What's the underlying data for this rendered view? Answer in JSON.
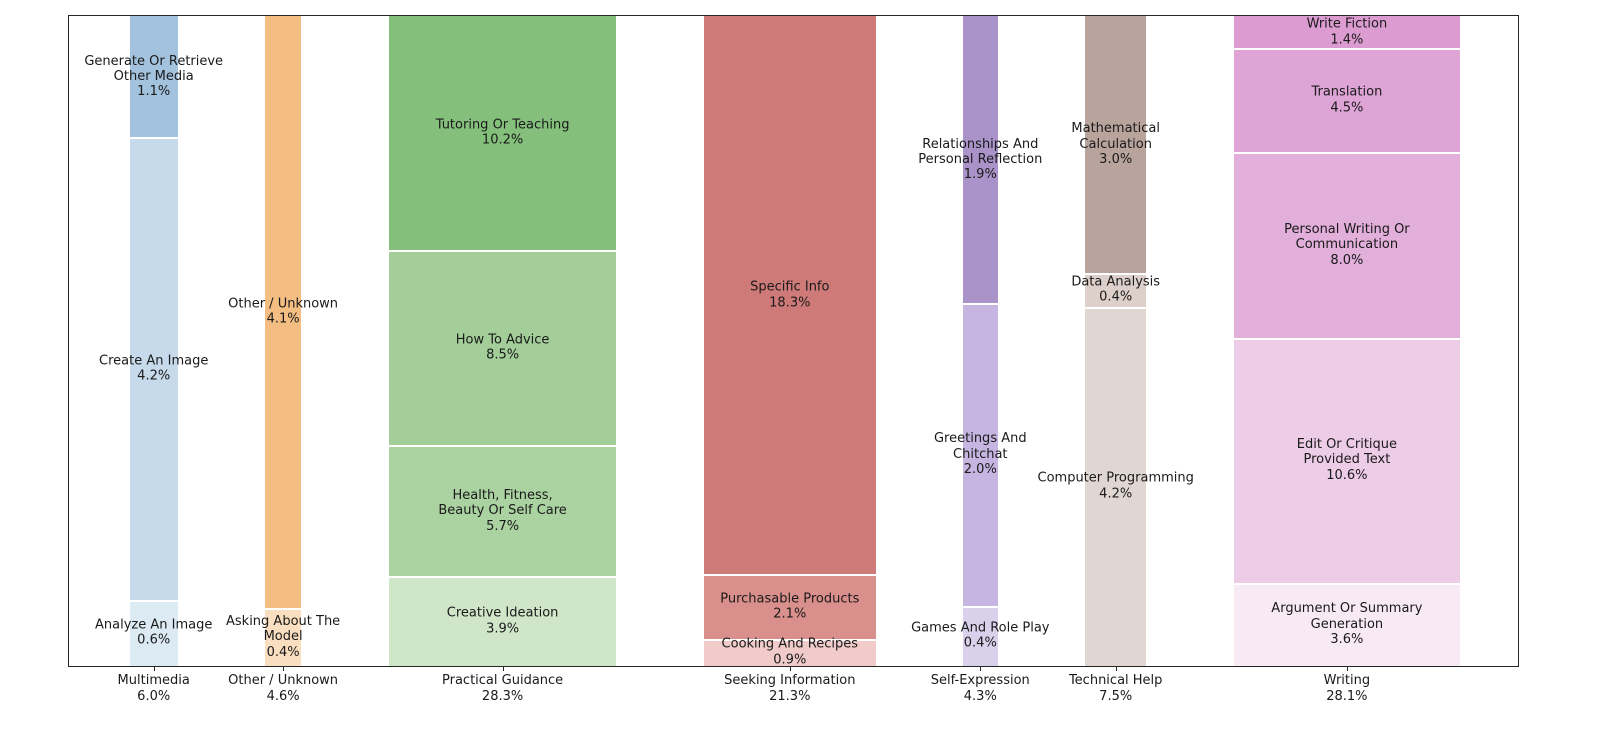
{
  "chart_data": {
    "type": "bar",
    "subtype": "marimekko_mosaic_100pct_stacked",
    "title": "",
    "value_unit": "%",
    "grid": false,
    "frame": true,
    "legend": "none",
    "background": "#ffffff",
    "axis_color": "#262626",
    "text_color": "#1a1a1a",
    "categories": [
      "Multimedia",
      "Other / Unknown",
      "Practical Guidance",
      "Seeking Information",
      "Self-Expression",
      "Technical Help",
      "Writing"
    ],
    "category_total_labels": [
      "6.0%",
      "4.6%",
      "28.3%",
      "21.3%",
      "4.3%",
      "7.5%",
      "28.1%"
    ],
    "columns": [
      {
        "category": "Multimedia",
        "total": 6.0,
        "total_label": "6.0%",
        "segments": [
          {
            "name": "Generate Or Retrieve Other Media",
            "label_lines": "Generate Or Retrieve\nOther Media",
            "value": 1.1,
            "value_label": "1.1%",
            "color": "#a2c2dd"
          },
          {
            "name": "Create An Image",
            "label_lines": "Create An Image",
            "value": 4.2,
            "value_label": "4.2%",
            "color": "#c6daeb"
          },
          {
            "name": "Analyze An Image",
            "label_lines": "Analyze An Image",
            "value": 0.6,
            "value_label": "0.6%",
            "color": "#dceaf4"
          }
        ]
      },
      {
        "category": "Other / Unknown",
        "total": 4.6,
        "total_label": "4.6%",
        "segments": [
          {
            "name": "Other / Unknown",
            "label_lines": "Other / Unknown",
            "value": 4.1,
            "value_label": "4.1%",
            "color": "#f4bd82"
          },
          {
            "name": "Asking About The Model",
            "label_lines": "Asking About The\nModel",
            "value": 0.4,
            "value_label": "0.4%",
            "color": "#fadec0"
          }
        ]
      },
      {
        "category": "Practical Guidance",
        "total": 28.3,
        "total_label": "28.3%",
        "segments": [
          {
            "name": "Tutoring Or Teaching",
            "label_lines": "Tutoring Or Teaching",
            "value": 10.2,
            "value_label": "10.2%",
            "color": "#84c07c"
          },
          {
            "name": "How To Advice",
            "label_lines": "How To Advice",
            "value": 8.5,
            "value_label": "8.5%",
            "color": "#a3ce99"
          },
          {
            "name": "Health, Fitness, Beauty Or Self Care",
            "label_lines": "Health, Fitness,\nBeauty Or Self Care",
            "value": 5.7,
            "value_label": "5.7%",
            "color": "#abd3a1"
          },
          {
            "name": "Creative Ideation",
            "label_lines": "Creative Ideation",
            "value": 3.9,
            "value_label": "3.9%",
            "color": "#cfe6c9"
          }
        ]
      },
      {
        "category": "Seeking Information",
        "total": 21.3,
        "total_label": "21.3%",
        "segments": [
          {
            "name": "Specific Info",
            "label_lines": "Specific Info",
            "value": 18.3,
            "value_label": "18.3%",
            "color": "#cd7a78"
          },
          {
            "name": "Purchasable Products",
            "label_lines": "Purchasable Products",
            "value": 2.1,
            "value_label": "2.1%",
            "color": "#d98f8c"
          },
          {
            "name": "Cooking And Recipes",
            "label_lines": "Cooking And Recipes",
            "value": 0.9,
            "value_label": "0.9%",
            "color": "#f0cbca"
          }
        ]
      },
      {
        "category": "Self-Expression",
        "total": 4.3,
        "total_label": "4.3%",
        "segments": [
          {
            "name": "Relationships And Personal Reflection",
            "label_lines": "Relationships And\nPersonal Reflection",
            "value": 1.9,
            "value_label": "1.9%",
            "color": "#a993c9"
          },
          {
            "name": "Greetings And Chitchat",
            "label_lines": "Greetings And\nChitchat",
            "value": 2.0,
            "value_label": "2.0%",
            "color": "#c6b5e0"
          },
          {
            "name": "Games And Role Play",
            "label_lines": "Games And Role Play",
            "value": 0.4,
            "value_label": "0.4%",
            "color": "#d9d0ec"
          }
        ]
      },
      {
        "category": "Technical Help",
        "total": 7.5,
        "total_label": "7.5%",
        "segments": [
          {
            "name": "Mathematical Calculation",
            "label_lines": "Mathematical\nCalculation",
            "value": 3.0,
            "value_label": "3.0%",
            "color": "#b8a49c"
          },
          {
            "name": "Data Analysis",
            "label_lines": "Data Analysis",
            "value": 0.4,
            "value_label": "0.4%",
            "color": "#ddd0ca"
          },
          {
            "name": "Computer Programming",
            "label_lines": "Computer Programming",
            "value": 4.2,
            "value_label": "4.2%",
            "color": "#e1d7d2"
          }
        ]
      },
      {
        "category": "Writing",
        "total": 28.1,
        "total_label": "28.1%",
        "segments": [
          {
            "name": "Write Fiction",
            "label_lines": "Write Fiction",
            "value": 1.4,
            "value_label": "1.4%",
            "color": "#dc9cd1"
          },
          {
            "name": "Translation",
            "label_lines": "Translation",
            "value": 4.5,
            "value_label": "4.5%",
            "color": "#dfa4d6"
          },
          {
            "name": "Personal Writing Or Communication",
            "label_lines": "Personal Writing Or\nCommunication",
            "value": 8.0,
            "value_label": "8.0%",
            "color": "#e2aeda"
          },
          {
            "name": "Edit Or Critique Provided Text",
            "label_lines": "Edit Or Critique\nProvided Text",
            "value": 10.6,
            "value_label": "10.6%",
            "color": "#edcce7"
          },
          {
            "name": "Argument Or Summary Generation",
            "label_lines": "Argument Or Summary\nGeneration",
            "value": 3.6,
            "value_label": "3.6%",
            "color": "#f8eaf4"
          }
        ]
      }
    ]
  }
}
